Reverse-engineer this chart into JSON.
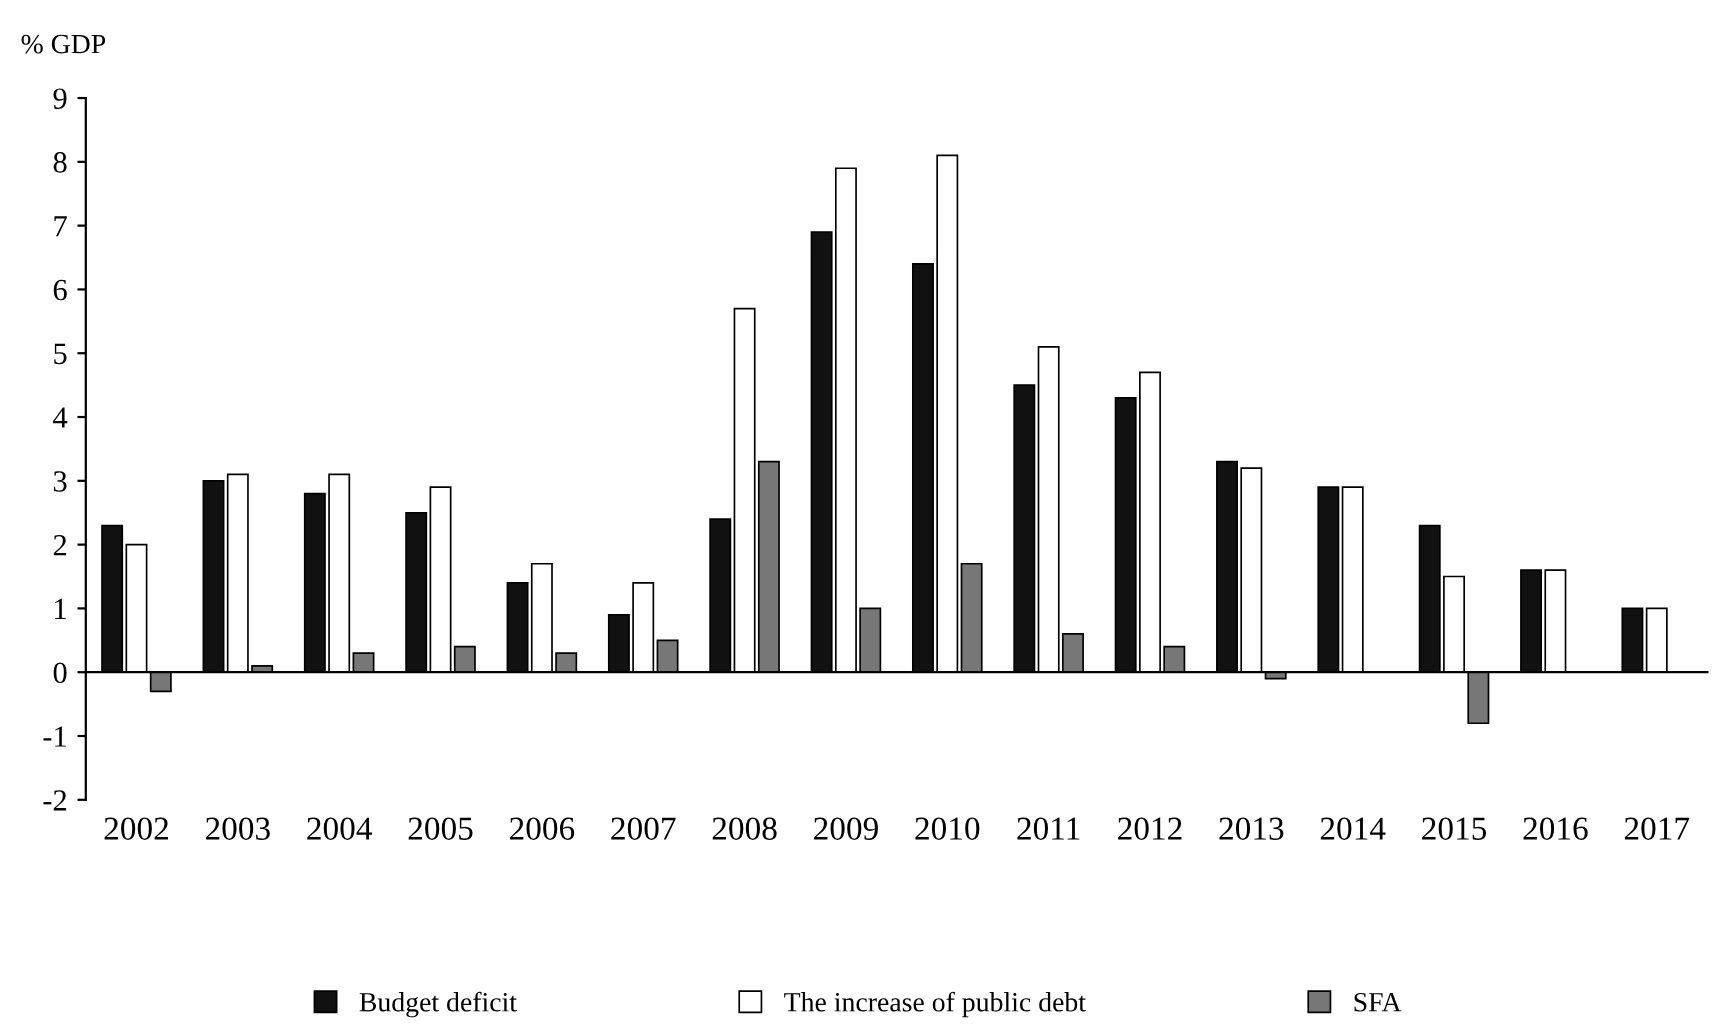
{
  "chart_data": {
    "type": "bar",
    "ylabel": "% GDP",
    "categories": [
      "2002",
      "2003",
      "2004",
      "2005",
      "2006",
      "2007",
      "2008",
      "2009",
      "2010",
      "2011",
      "2012",
      "2013",
      "2014",
      "2015",
      "2016",
      "2017"
    ],
    "series": [
      {
        "name": "Budget deficit",
        "color": "#111111",
        "values": [
          2.3,
          3.0,
          2.8,
          2.5,
          1.4,
          0.9,
          2.4,
          6.9,
          6.4,
          4.5,
          4.3,
          3.3,
          2.9,
          2.3,
          1.6,
          1.0
        ]
      },
      {
        "name": "The increase of public debt",
        "color": "#ffffff",
        "values": [
          2.0,
          3.1,
          3.1,
          2.9,
          1.7,
          1.4,
          5.7,
          7.9,
          8.1,
          5.1,
          4.7,
          3.2,
          2.9,
          1.5,
          1.6,
          1.0
        ]
      },
      {
        "name": "SFA",
        "color": "#777777",
        "values": [
          -0.3,
          0.1,
          0.3,
          0.4,
          0.3,
          0.5,
          3.3,
          1.0,
          1.7,
          0.6,
          0.4,
          -0.1,
          null,
          -0.8,
          null,
          null
        ]
      }
    ],
    "ylim": [
      -2,
      9
    ],
    "yticks": [
      -2,
      -1,
      0,
      1,
      2,
      3,
      4,
      5,
      6,
      7,
      8,
      9
    ],
    "legend": "bottom"
  }
}
